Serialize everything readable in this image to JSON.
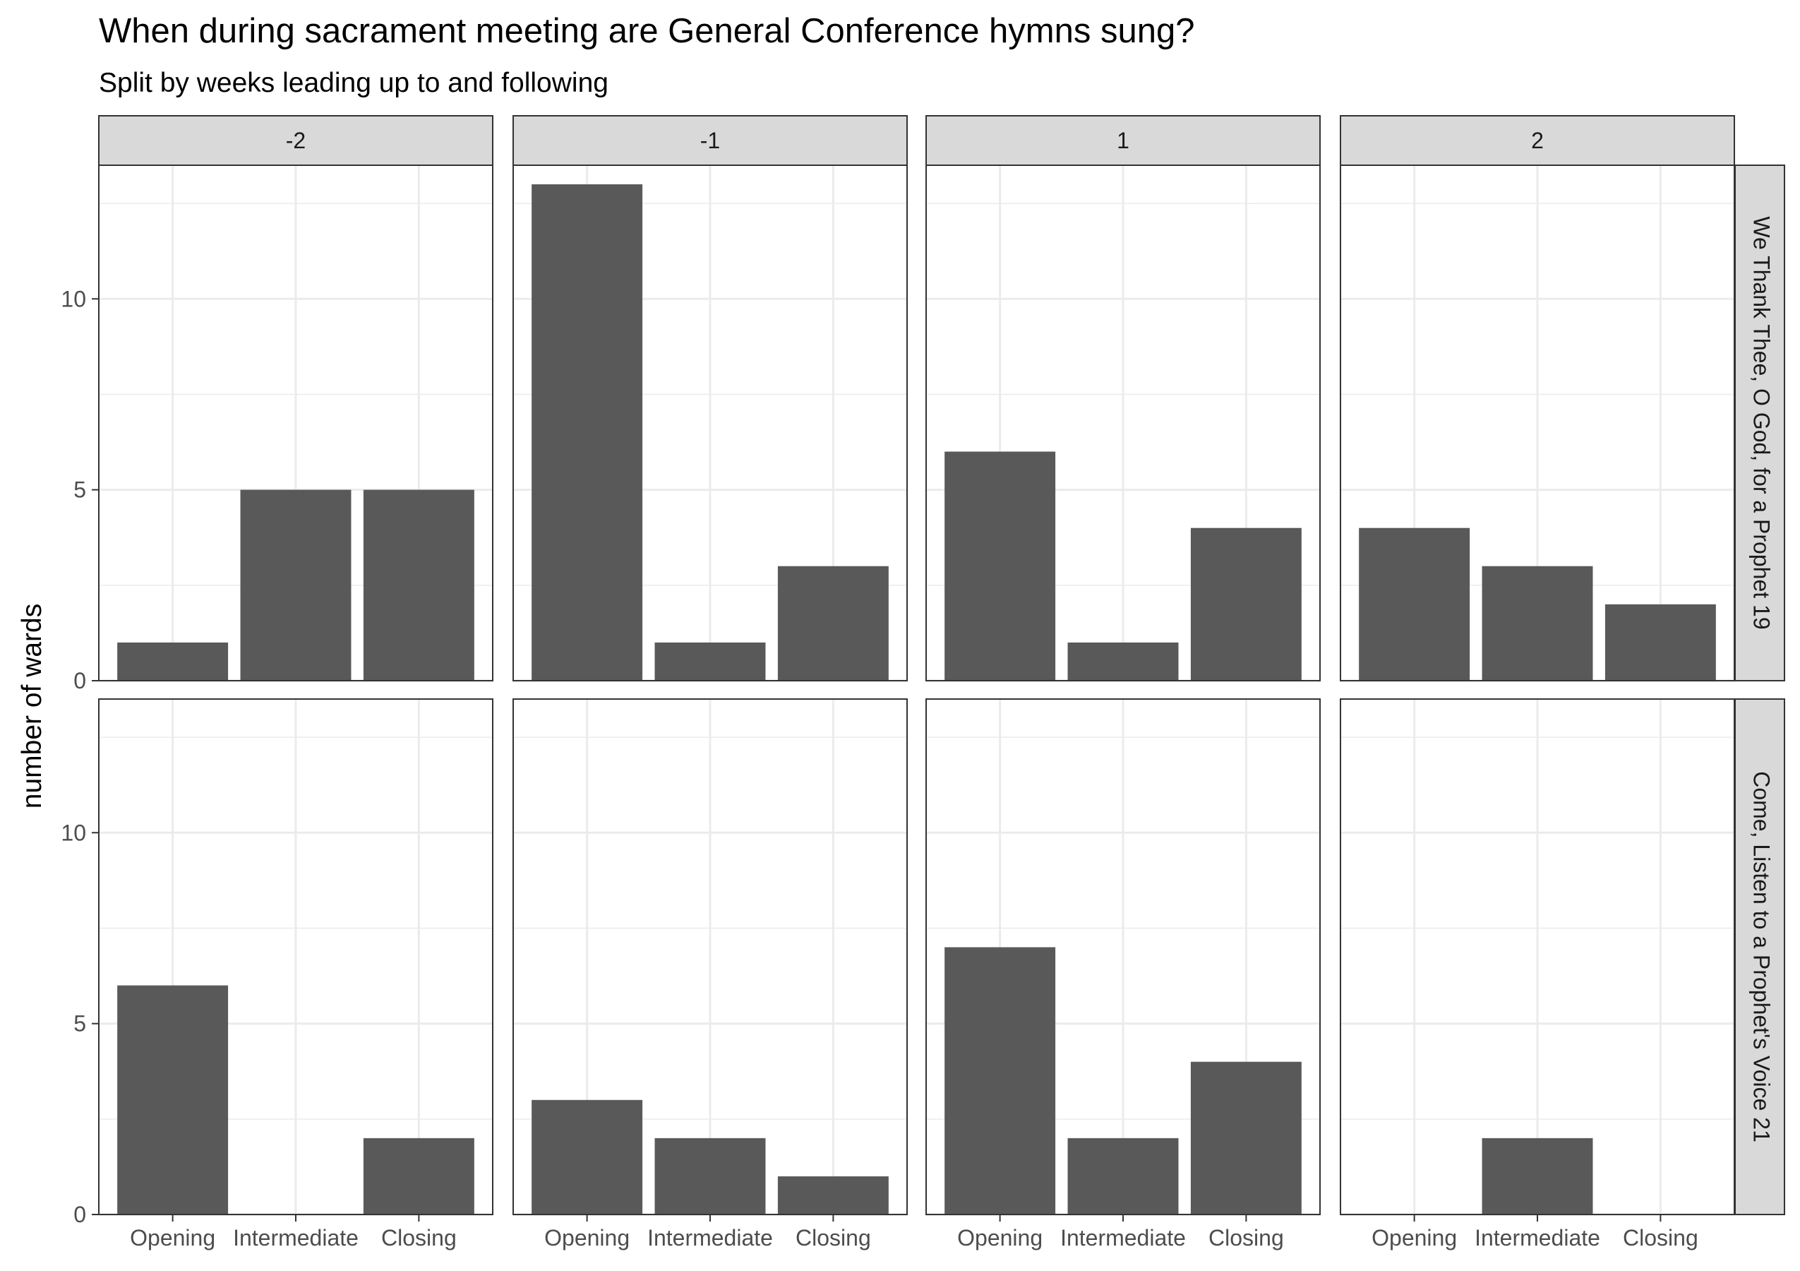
{
  "chart_data": {
    "type": "bar",
    "title": "When during sacrament meeting are General Conference hymns sung?",
    "subtitle": "Split by weeks leading up to and following",
    "xlabel": "",
    "ylabel": "number of wards",
    "categories": [
      "Opening",
      "Intermediate",
      "Closing"
    ],
    "column_facets": [
      "-2",
      "-1",
      "1",
      "2"
    ],
    "row_facets": [
      "We Thank Thee, O God, for a Prophet 19",
      "Come, Listen to a Prophet's Voice 21"
    ],
    "ylim": [
      0,
      13.5
    ],
    "yticks": [
      0,
      5,
      10
    ],
    "grid": true,
    "bar_color": "#595959",
    "panels": [
      {
        "row": 0,
        "col": 0,
        "values": [
          1,
          5,
          5
        ]
      },
      {
        "row": 0,
        "col": 1,
        "values": [
          13,
          1,
          3
        ]
      },
      {
        "row": 0,
        "col": 2,
        "values": [
          6,
          1,
          4
        ]
      },
      {
        "row": 0,
        "col": 3,
        "values": [
          4,
          3,
          2
        ]
      },
      {
        "row": 1,
        "col": 0,
        "values": [
          6,
          0,
          2
        ]
      },
      {
        "row": 1,
        "col": 1,
        "values": [
          3,
          2,
          1
        ]
      },
      {
        "row": 1,
        "col": 2,
        "values": [
          7,
          2,
          4
        ]
      },
      {
        "row": 1,
        "col": 3,
        "values": [
          0,
          2,
          0
        ]
      }
    ]
  }
}
